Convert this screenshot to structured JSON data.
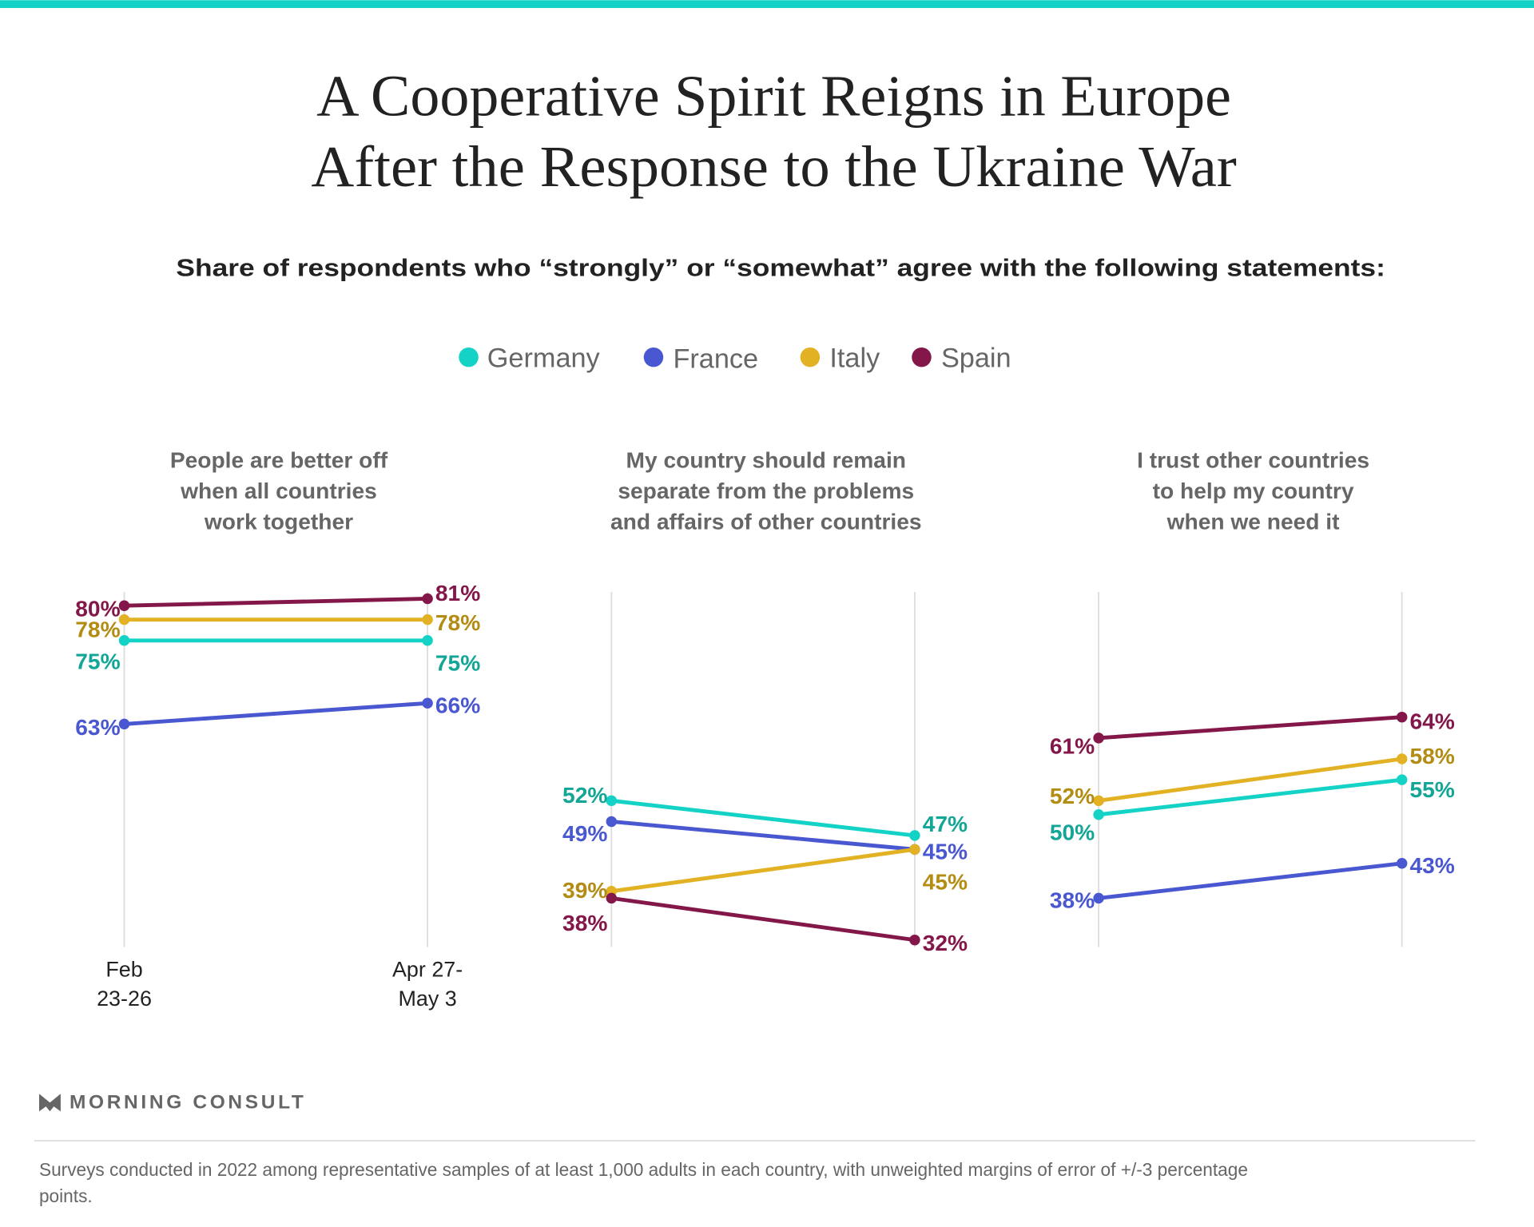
{
  "title_lines": [
    "A Cooperative Spirit Reigns in Europe",
    "After the Response to the Ukraine War"
  ],
  "subtitle": "Share of respondents who “strongly” or “somewhat” agree with the following statements:",
  "colors": {
    "accent_bar": "#14d3c6",
    "Germany": {
      "line": "#14d3c6",
      "label": "#13a596"
    },
    "France": {
      "line": "#4958d0",
      "label": "#4958d0"
    },
    "Italy": {
      "line": "#e3b224",
      "label": "#b38c14"
    },
    "Spain": {
      "line": "#84174a",
      "label": "#84174a"
    }
  },
  "legend": [
    "Germany",
    "France",
    "Italy",
    "Spain"
  ],
  "chart_data": [
    {
      "type": "line",
      "title_lines": [
        "People are better off",
        "when all countries",
        "work together"
      ],
      "categories": [
        "Feb 23-26",
        "Apr 27-May 3"
      ],
      "x_tick_lines": [
        [
          "Feb",
          "23-26"
        ],
        [
          "Apr 27-",
          "May 3"
        ]
      ],
      "series": [
        {
          "name": "Germany",
          "values": [
            75,
            75
          ],
          "labels": [
            "75%",
            "75%"
          ]
        },
        {
          "name": "France",
          "values": [
            63,
            66
          ],
          "labels": [
            "63%",
            "66%"
          ]
        },
        {
          "name": "Italy",
          "values": [
            78,
            78
          ],
          "labels": [
            "78%",
            "78%"
          ]
        },
        {
          "name": "Spain",
          "values": [
            80,
            81
          ],
          "labels": [
            "80%",
            "81%"
          ]
        }
      ],
      "unit": "%"
    },
    {
      "type": "line",
      "title_lines": [
        "My country should remain",
        "separate from the problems",
        "and affairs of other countries"
      ],
      "categories": [
        "Feb 23-26",
        "Apr 27-May 3"
      ],
      "series": [
        {
          "name": "Germany",
          "values": [
            52,
            47
          ],
          "labels": [
            "52%",
            "47%"
          ]
        },
        {
          "name": "France",
          "values": [
            49,
            45
          ],
          "labels": [
            "49%",
            "45%"
          ]
        },
        {
          "name": "Italy",
          "values": [
            39,
            45
          ],
          "labels": [
            "39%",
            "45%"
          ]
        },
        {
          "name": "Spain",
          "values": [
            38,
            32
          ],
          "labels": [
            "38%",
            "32%"
          ]
        }
      ],
      "unit": "%"
    },
    {
      "type": "line",
      "title_lines": [
        "I trust other countries",
        "to help my country",
        "when we need it"
      ],
      "categories": [
        "Feb 23-26",
        "Apr 27-May 3"
      ],
      "series": [
        {
          "name": "Germany",
          "values": [
            50,
            55
          ],
          "labels": [
            "50%",
            "55%"
          ]
        },
        {
          "name": "France",
          "values": [
            38,
            43
          ],
          "labels": [
            "38%",
            "43%"
          ]
        },
        {
          "name": "Italy",
          "values": [
            52,
            58
          ],
          "labels": [
            "52%",
            "58%"
          ]
        },
        {
          "name": "Spain",
          "values": [
            61,
            64
          ],
          "labels": [
            "61%",
            "64%"
          ]
        }
      ],
      "unit": "%"
    }
  ],
  "logo": "MORNING CONSULT",
  "footnote_lines": [
    "Surveys conducted in 2022 among representative samples of at least 1,000 adults in each country, with unweighted margins of error of +/-3 percentage",
    "points."
  ]
}
